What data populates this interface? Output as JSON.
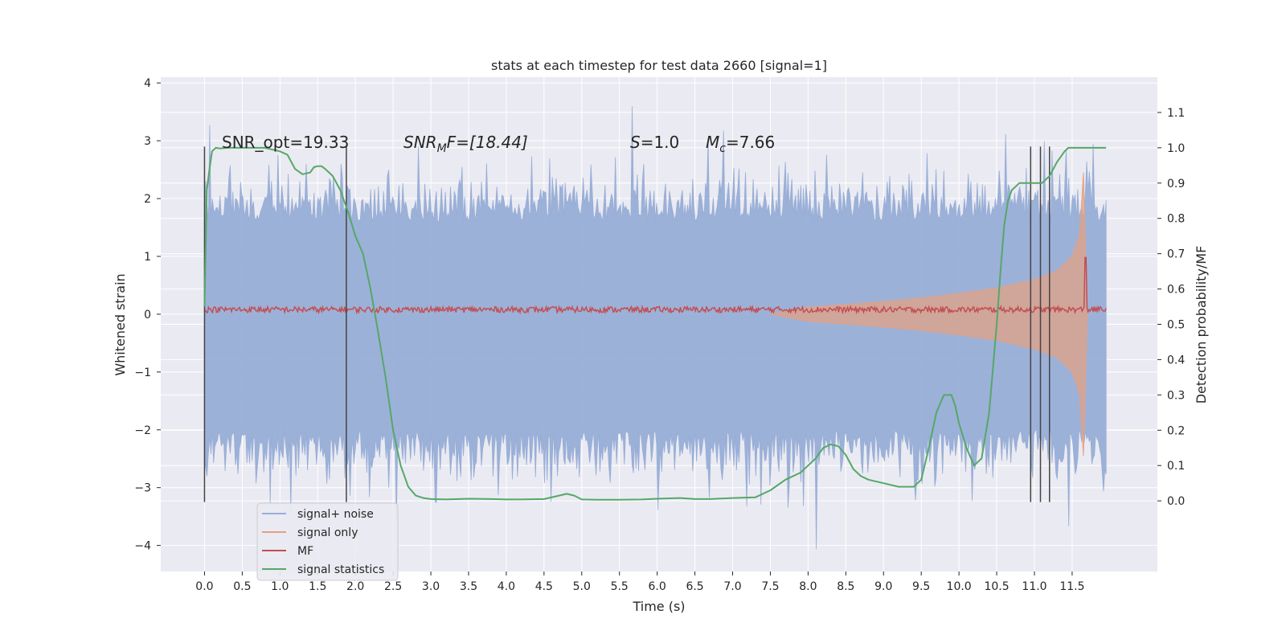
{
  "chart_data": {
    "type": "line",
    "title": "stats at each timestep for test data 2660 [signal=1]",
    "xlabel": "Time (s)",
    "ylabel": "Whitened strain",
    "ylabel_right": "Detection probability/MF",
    "xlim": [
      -0.58,
      12.63
    ],
    "ylim": [
      -4.45,
      4.1
    ],
    "ylim_right": [
      -0.2,
      1.2
    ],
    "x_ticks": [
      "0.0",
      "0.5",
      "1.0",
      "1.5",
      "2.0",
      "2.5",
      "3.0",
      "3.5",
      "4.0",
      "4.5",
      "5.0",
      "5.5",
      "6.0",
      "6.5",
      "7.0",
      "7.5",
      "8.0",
      "8.5",
      "9.0",
      "9.5",
      "10.0",
      "10.5",
      "11.0",
      "11.5"
    ],
    "y_ticks": [
      "−4",
      "−3",
      "−2",
      "−1",
      "0",
      "1",
      "2",
      "3",
      "4"
    ],
    "y_ticks_right": [
      "0.0",
      "0.1",
      "0.2",
      "0.3",
      "0.4",
      "0.5",
      "0.6",
      "0.7",
      "0.8",
      "0.9",
      "1.0",
      "1.1"
    ],
    "grid": true,
    "legend_position": "lower-left",
    "colors": {
      "background": "#eaeaf2",
      "grid": "#ffffff",
      "noise": "#98aed6",
      "signal_only": "#e2a185",
      "mf": "#c44e52",
      "statistics": "#55a868",
      "vline": "#444444"
    },
    "annotations": {
      "snr_opt": "SNR_opt=19.33",
      "snr_mf": "SNR",
      "snr_mf_sub": "M",
      "snr_mf_tail": "F=[18.44]",
      "s_var": "S",
      "s_val": "=1.0",
      "mc_var": "M",
      "mc_sub": "c",
      "mc_val": "=7.66"
    },
    "noise_envelope": {
      "x": [
        0.0,
        11.95
      ],
      "y_max": 3.6,
      "y_min": -4.1,
      "band_upper": 1.6,
      "band_lower": -2.0
    },
    "signal_only": {
      "x": [
        7.5,
        8.0,
        8.5,
        9.0,
        9.5,
        10.0,
        10.5,
        11.0,
        11.3,
        11.5,
        11.6,
        11.65,
        11.7
      ],
      "amplitude": [
        0.0,
        0.12,
        0.17,
        0.22,
        0.28,
        0.36,
        0.45,
        0.6,
        0.75,
        1.0,
        1.4,
        2.45,
        0.0
      ]
    },
    "mf_peak": {
      "x": 11.68,
      "y": 0.98
    },
    "series": [
      {
        "name": "signal statistics",
        "x": [
          0.0,
          0.03,
          0.06,
          0.1,
          0.15,
          0.2,
          0.3,
          0.5,
          0.8,
          1.0,
          1.1,
          1.2,
          1.3,
          1.4,
          1.45,
          1.5,
          1.55,
          1.6,
          1.7,
          1.8,
          1.9,
          2.0,
          2.1,
          2.2,
          2.3,
          2.4,
          2.5,
          2.6,
          2.7,
          2.8,
          2.9,
          3.0,
          3.2,
          3.5,
          3.8,
          4.0,
          4.2,
          4.5,
          4.7,
          4.8,
          4.9,
          5.0,
          5.2,
          5.5,
          5.8,
          6.0,
          6.3,
          6.5,
          6.7,
          7.0,
          7.3,
          7.5,
          7.7,
          7.9,
          8.1,
          8.2,
          8.3,
          8.4,
          8.5,
          8.6,
          8.7,
          8.8,
          9.0,
          9.2,
          9.4,
          9.5,
          9.6,
          9.7,
          9.8,
          9.9,
          9.95,
          10.0,
          10.1,
          10.2,
          10.3,
          10.4,
          10.5,
          10.55,
          10.6,
          10.65,
          10.7,
          10.8,
          10.9,
          11.0,
          11.1,
          11.2,
          11.3,
          11.4,
          11.45,
          11.5,
          11.6,
          11.7,
          11.8,
          11.9,
          11.95
        ],
        "values": [
          0.55,
          0.88,
          0.93,
          0.99,
          1.0,
          0.998,
          1.0,
          1.0,
          1.0,
          0.99,
          0.98,
          0.94,
          0.925,
          0.93,
          0.945,
          0.948,
          0.948,
          0.94,
          0.92,
          0.88,
          0.82,
          0.75,
          0.7,
          0.6,
          0.48,
          0.35,
          0.2,
          0.1,
          0.04,
          0.015,
          0.008,
          0.005,
          0.004,
          0.006,
          0.005,
          0.004,
          0.004,
          0.005,
          0.015,
          0.02,
          0.015,
          0.004,
          0.003,
          0.003,
          0.004,
          0.006,
          0.008,
          0.005,
          0.005,
          0.008,
          0.01,
          0.03,
          0.06,
          0.08,
          0.12,
          0.15,
          0.16,
          0.155,
          0.13,
          0.09,
          0.07,
          0.06,
          0.05,
          0.04,
          0.04,
          0.06,
          0.15,
          0.25,
          0.3,
          0.3,
          0.27,
          0.22,
          0.15,
          0.1,
          0.12,
          0.25,
          0.5,
          0.65,
          0.78,
          0.85,
          0.88,
          0.9,
          0.9,
          0.9,
          0.9,
          0.92,
          0.96,
          0.99,
          1.0,
          1.0,
          1.0,
          1.0,
          1.0,
          1.0,
          1.0
        ]
      },
      {
        "name": "MF",
        "baseline": 0.08,
        "jitter": 0.1
      }
    ],
    "vertical_markers": {
      "x": [
        0.0,
        1.88,
        10.95,
        11.08,
        11.2
      ],
      "y_top": 2.9,
      "y_bottom": -3.25
    },
    "legend": [
      "signal+ noise",
      "signal only",
      "MF",
      "signal statistics"
    ]
  }
}
